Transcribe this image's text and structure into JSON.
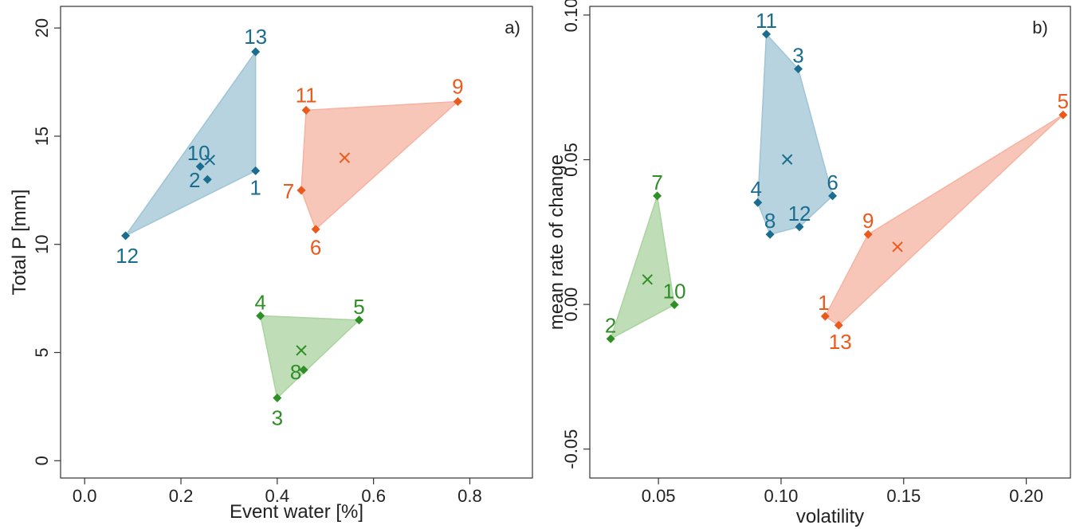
{
  "chart_data": [
    {
      "type": "scatter",
      "panel_label": "a)",
      "xlabel": "Event water [%]",
      "ylabel": "Total P [mm]",
      "xlim": [
        -0.05,
        0.93
      ],
      "ylim": [
        -0.8,
        21
      ],
      "xticks": [
        "0.0",
        "0.2",
        "0.4",
        "0.6",
        "0.8"
      ],
      "yticks": [
        "0",
        "5",
        "10",
        "15",
        "20"
      ],
      "grid": false,
      "legend": "none",
      "groups": [
        {
          "color": "#1a6d8e",
          "fill": "#9fc4d6",
          "hull": [
            "13",
            "1",
            "12"
          ],
          "centroid": {
            "x": 0.26,
            "y": 13.9
          },
          "points": [
            {
              "label": "13",
              "x": 0.355,
              "y": 18.9
            },
            {
              "label": "10",
              "x": 0.24,
              "y": 13.6
            },
            {
              "label": "2",
              "x": 0.255,
              "y": 13.0
            },
            {
              "label": "1",
              "x": 0.355,
              "y": 13.4
            },
            {
              "label": "12",
              "x": 0.085,
              "y": 10.4
            }
          ]
        },
        {
          "color": "#ea5a1c",
          "fill": "#f5b3a0",
          "hull": [
            "11",
            "9",
            "6",
            "7"
          ],
          "centroid": {
            "x": 0.54,
            "y": 14.0
          },
          "points": [
            {
              "label": "11",
              "x": 0.46,
              "y": 16.2
            },
            {
              "label": "9",
              "x": 0.775,
              "y": 16.6
            },
            {
              "label": "7",
              "x": 0.45,
              "y": 12.5
            },
            {
              "label": "6",
              "x": 0.48,
              "y": 10.7
            }
          ]
        },
        {
          "color": "#2f8f26",
          "fill": "#a9d39f",
          "hull": [
            "4",
            "5",
            "3"
          ],
          "centroid": {
            "x": 0.45,
            "y": 5.1
          },
          "points": [
            {
              "label": "4",
              "x": 0.365,
              "y": 6.7
            },
            {
              "label": "5",
              "x": 0.57,
              "y": 6.5
            },
            {
              "label": "8",
              "x": 0.455,
              "y": 4.2
            },
            {
              "label": "3",
              "x": 0.4,
              "y": 2.9
            }
          ]
        }
      ]
    },
    {
      "type": "scatter",
      "panel_label": "b)",
      "xlabel": "volatility",
      "ylabel": "mean rate of change",
      "xlim": [
        0.022,
        0.218
      ],
      "ylim": [
        -0.06,
        0.103
      ],
      "xticks": [
        "0.05",
        "0.10",
        "0.15",
        "0.20"
      ],
      "yticks": [
        "-0.05",
        "0.00",
        "0.05",
        "0.10"
      ],
      "grid": false,
      "legend": "none",
      "groups": [
        {
          "color": "#1a6d8e",
          "fill": "#9fc4d6",
          "hull": [
            "11",
            "3",
            "6",
            "12",
            "8",
            "4"
          ],
          "centroid": {
            "x": 0.1025,
            "y": 0.0501
          },
          "points": [
            {
              "label": "11",
              "x": 0.094,
              "y": 0.0934
            },
            {
              "label": "3",
              "x": 0.107,
              "y": 0.0814
            },
            {
              "label": "4",
              "x": 0.0905,
              "y": 0.0352
            },
            {
              "label": "6",
              "x": 0.121,
              "y": 0.0375
            },
            {
              "label": "12",
              "x": 0.1075,
              "y": 0.0268
            },
            {
              "label": "8",
              "x": 0.0955,
              "y": 0.0242
            }
          ]
        },
        {
          "color": "#ea5a1c",
          "fill": "#f5b3a0",
          "hull": [
            "5",
            "13",
            "1",
            "9"
          ],
          "centroid": {
            "x": 0.1475,
            "y": 0.0199
          },
          "points": [
            {
              "label": "5",
              "x": 0.215,
              "y": 0.0655
            },
            {
              "label": "9",
              "x": 0.1355,
              "y": 0.0242
            },
            {
              "label": "1",
              "x": 0.118,
              "y": -0.0041
            },
            {
              "label": "13",
              "x": 0.1235,
              "y": -0.0072
            }
          ]
        },
        {
          "color": "#2f8f26",
          "fill": "#a9d39f",
          "hull": [
            "7",
            "10",
            "2"
          ],
          "centroid": {
            "x": 0.0455,
            "y": 0.0086
          },
          "points": [
            {
              "label": "7",
              "x": 0.0495,
              "y": 0.0375
            },
            {
              "label": "10",
              "x": 0.0565,
              "y": -0.0001
            },
            {
              "label": "2",
              "x": 0.0305,
              "y": -0.0119
            }
          ]
        }
      ]
    }
  ]
}
